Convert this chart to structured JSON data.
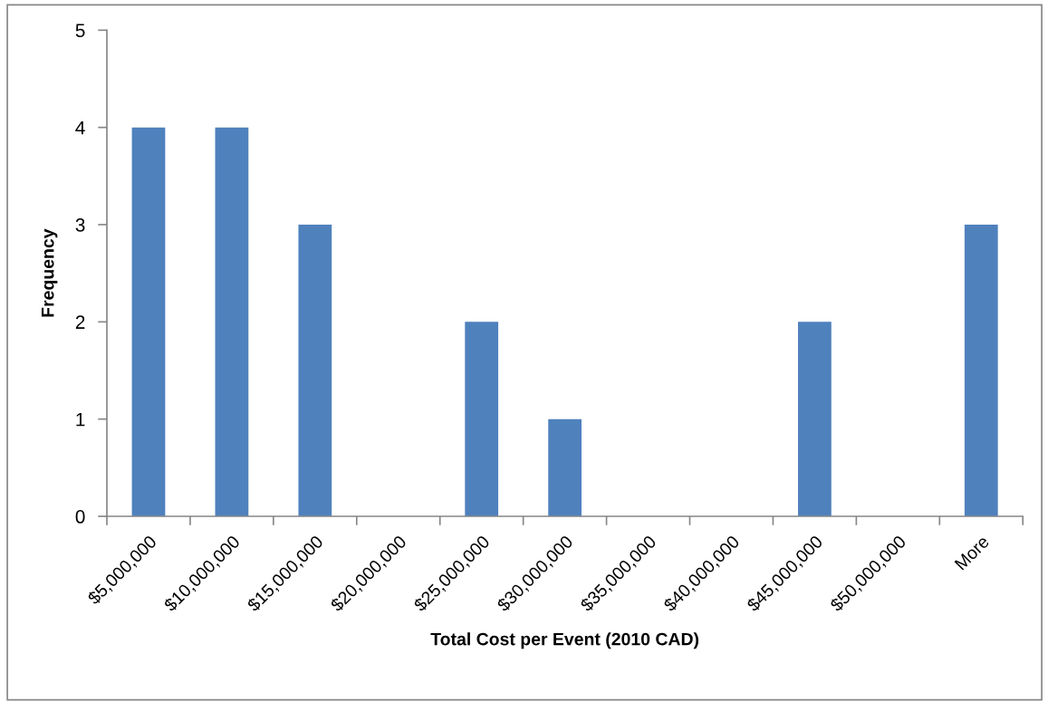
{
  "chart_data": {
    "type": "bar",
    "xlabel": "Total Cost per Event (2010 CAD)",
    "ylabel": "Frequency",
    "categories": [
      "$5,000,000",
      "$10,000,000",
      "$15,000,000",
      "$20,000,000",
      "$25,000,000",
      "$30,000,000",
      "$35,000,000",
      "$40,000,000",
      "$45,000,000",
      "$50,000,000",
      "More"
    ],
    "values": [
      4,
      4,
      3,
      0,
      2,
      1,
      0,
      0,
      2,
      0,
      3
    ],
    "color": "#4f81bd",
    "ylim": [
      0,
      5
    ],
    "yticks": [
      0,
      1,
      2,
      3,
      4,
      5
    ]
  }
}
